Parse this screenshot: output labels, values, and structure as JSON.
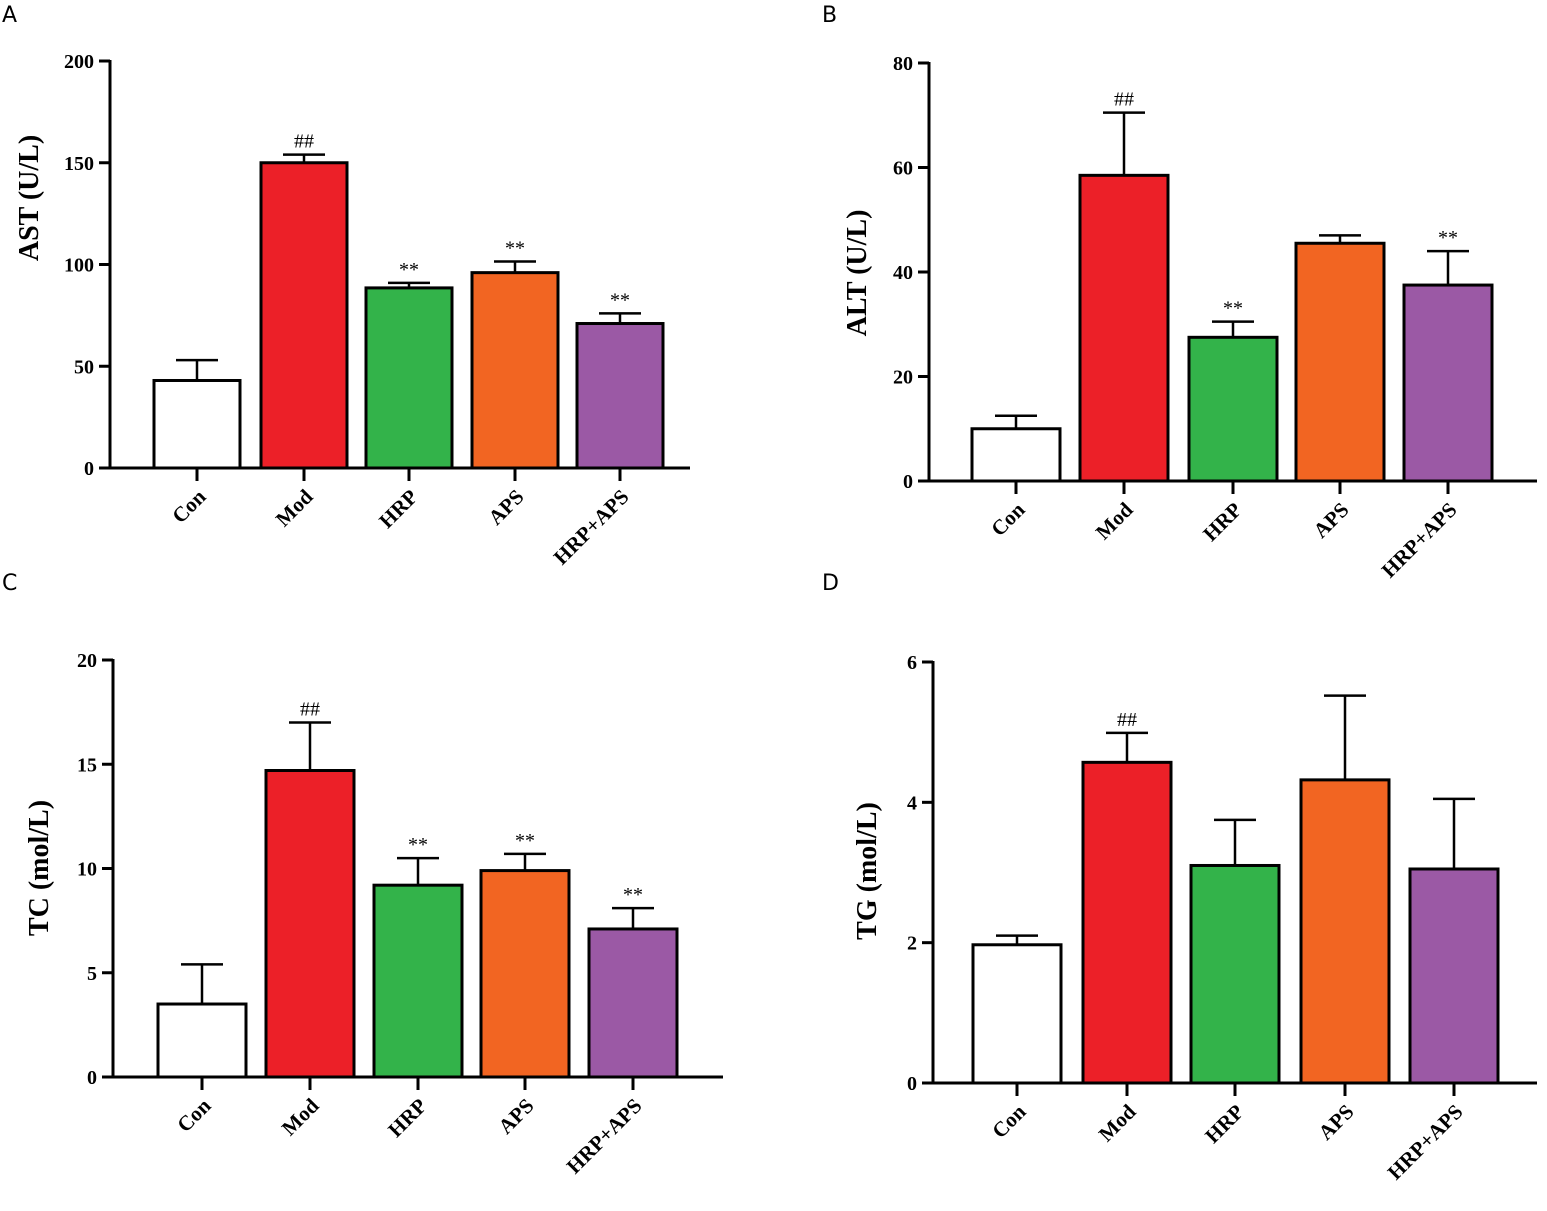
{
  "colors": {
    "Con": "#ffffff",
    "Mod": "#ec2028",
    "HRP": "#33b34a",
    "APS": "#f26522",
    "HRP+APS": "#9b59a5",
    "outline": "#000000"
  },
  "chart_data": [
    {
      "panel": "A",
      "type": "bar",
      "categories": [
        "Con",
        "Mod",
        "HRP",
        "APS",
        "HRP+APS"
      ],
      "values": [
        43,
        150,
        88.5,
        96,
        71
      ],
      "errors": [
        10,
        4,
        2.5,
        5.5,
        5
      ],
      "annotations": [
        "",
        "##",
        "**",
        "**",
        "**"
      ],
      "ylabel": "AST (U/L)",
      "ylim": [
        0,
        200
      ],
      "yticks": [
        0,
        50,
        100,
        150,
        200
      ]
    },
    {
      "panel": "B",
      "type": "bar",
      "categories": [
        "Con",
        "Mod",
        "HRP",
        "APS",
        "HRP+APS"
      ],
      "values": [
        10,
        58.5,
        27.5,
        45.5,
        37.5
      ],
      "errors": [
        2.5,
        12,
        3,
        1.5,
        6.5
      ],
      "annotations": [
        "",
        "##",
        "**",
        "",
        "**"
      ],
      "ylabel": "ALT (U/L)",
      "ylim": [
        0,
        80
      ],
      "yticks": [
        0,
        20,
        40,
        60,
        80
      ]
    },
    {
      "panel": "C",
      "type": "bar",
      "categories": [
        "Con",
        "Mod",
        "HRP",
        "APS",
        "HRP+APS"
      ],
      "values": [
        3.5,
        14.7,
        9.2,
        9.9,
        7.1
      ],
      "errors": [
        1.9,
        2.3,
        1.3,
        0.8,
        1.0
      ],
      "annotations": [
        "",
        "##",
        "**",
        "**",
        "**"
      ],
      "ylabel": "TC (mol/L)",
      "ylim": [
        0,
        20
      ],
      "yticks": [
        0,
        5,
        10,
        15,
        20
      ]
    },
    {
      "panel": "D",
      "type": "bar",
      "categories": [
        "Con",
        "Mod",
        "HRP",
        "APS",
        "HRP+APS"
      ],
      "values": [
        1.97,
        4.57,
        3.1,
        4.32,
        3.05
      ],
      "errors": [
        0.13,
        0.42,
        0.65,
        1.2,
        1.0
      ],
      "annotations": [
        "",
        "##",
        "",
        "",
        ""
      ],
      "ylabel": "TG (mol/L)",
      "ylim": [
        0,
        6
      ],
      "yticks": [
        0,
        2,
        4,
        6
      ]
    }
  ]
}
